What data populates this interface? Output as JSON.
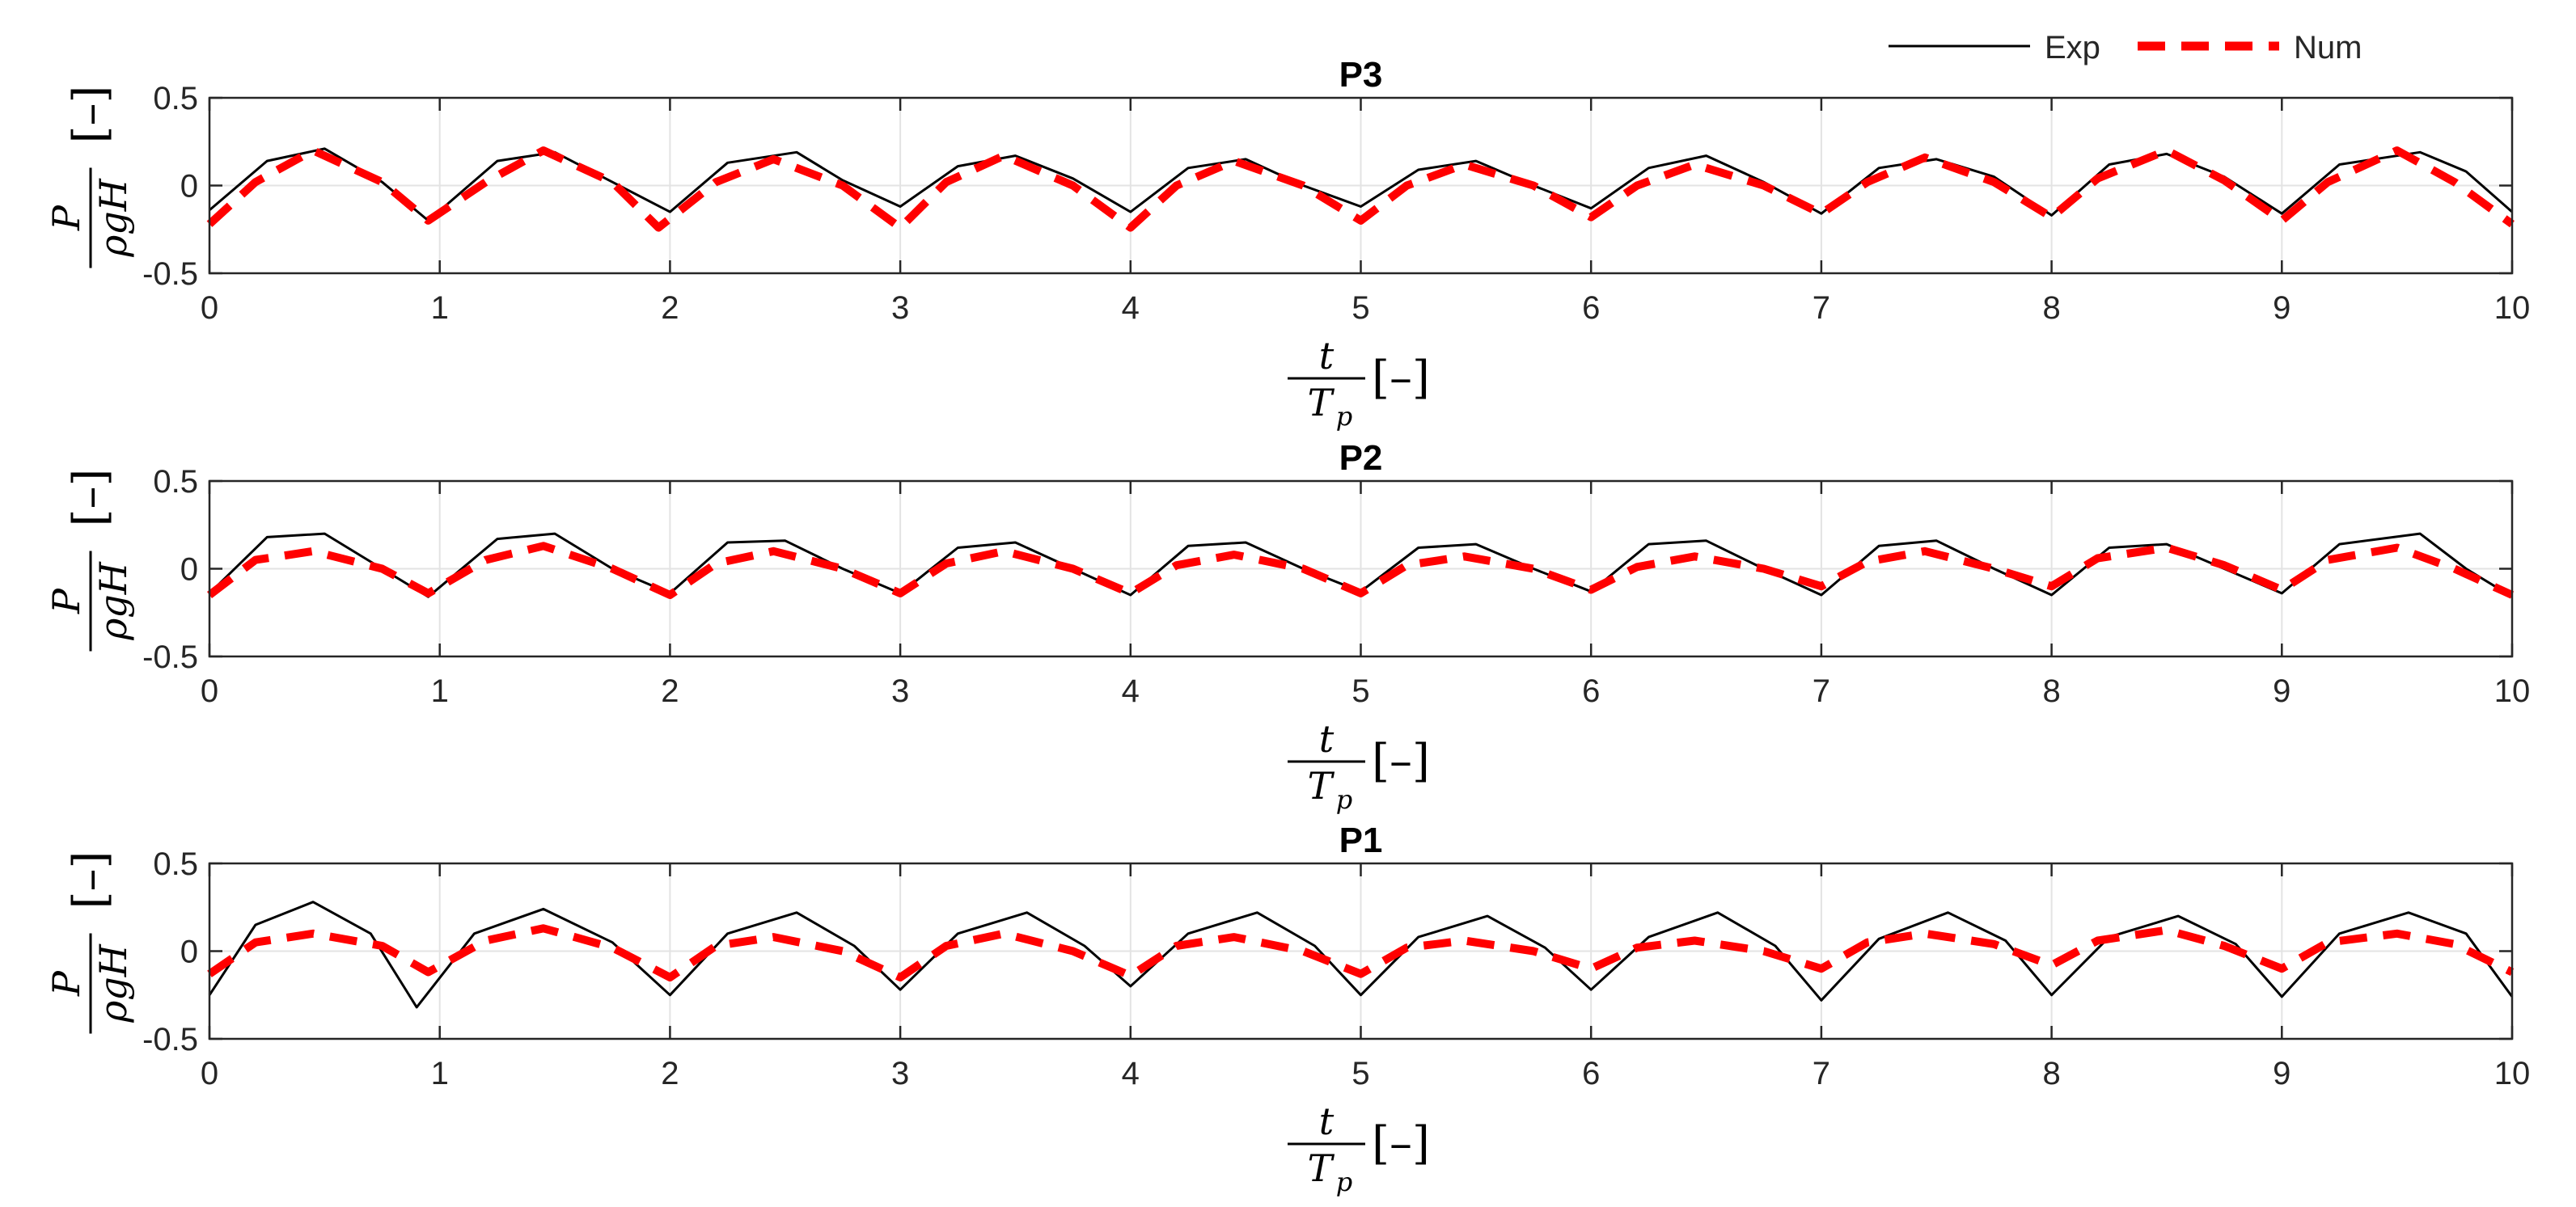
{
  "legend": {
    "placement": "top-right",
    "entries": [
      {
        "label": "Exp",
        "color": "#000000",
        "style": "solid"
      },
      {
        "label": "Num",
        "color": "#ff0000",
        "style": "dashed"
      }
    ]
  },
  "axis_text": {
    "x_var_num": "t",
    "x_var_den": "T",
    "x_var_den_sub": "p",
    "x_unit": "[–]",
    "y_var_num": "P",
    "y_var_den": "ρgH",
    "y_unit": "[–]"
  },
  "chart_data": [
    {
      "type": "line",
      "title": "P3",
      "xlim": [
        0,
        10
      ],
      "ylim": [
        -0.5,
        0.5
      ],
      "xticks": [
        "0",
        "1",
        "2",
        "3",
        "4",
        "5",
        "6",
        "7",
        "8",
        "9",
        "10"
      ],
      "yticks": [
        "0.5",
        "0",
        "-0.5"
      ],
      "grid": true,
      "series": [
        {
          "name": "Exp",
          "color": "#000000",
          "style": "solid",
          "x": [
            0,
            0.25,
            0.5,
            0.75,
            0.95,
            1.25,
            1.5,
            1.75,
            2.0,
            2.25,
            2.55,
            2.75,
            3.0,
            3.25,
            3.5,
            3.75,
            4.0,
            4.25,
            4.5,
            4.75,
            5.0,
            5.25,
            5.5,
            5.75,
            6.0,
            6.25,
            6.5,
            6.75,
            7.0,
            7.25,
            7.5,
            7.75,
            8.0,
            8.25,
            8.5,
            8.75,
            9.0,
            9.25,
            9.6,
            9.8,
            10.0
          ],
          "y": [
            -0.14,
            0.14,
            0.21,
            0.02,
            -0.2,
            0.14,
            0.19,
            0.02,
            -0.15,
            0.13,
            0.19,
            0.03,
            -0.12,
            0.11,
            0.17,
            0.04,
            -0.15,
            0.1,
            0.15,
            0.0,
            -0.12,
            0.09,
            0.14,
            0.0,
            -0.13,
            0.1,
            0.17,
            0.02,
            -0.16,
            0.1,
            0.15,
            0.05,
            -0.17,
            0.12,
            0.18,
            0.05,
            -0.16,
            0.12,
            0.19,
            0.08,
            -0.15
          ]
        },
        {
          "name": "Num",
          "color": "#ff0000",
          "style": "dashed",
          "x": [
            0,
            0.2,
            0.45,
            0.75,
            0.95,
            1.2,
            1.45,
            1.75,
            1.95,
            2.2,
            2.45,
            2.75,
            3.0,
            3.2,
            3.45,
            3.75,
            4.0,
            4.2,
            4.45,
            4.75,
            5.0,
            5.2,
            5.45,
            5.75,
            6.0,
            6.2,
            6.45,
            6.75,
            7.0,
            7.2,
            7.45,
            7.75,
            8.0,
            8.2,
            8.5,
            8.75,
            9.0,
            9.2,
            9.5,
            9.75,
            10.0
          ],
          "y": [
            -0.22,
            0.02,
            0.2,
            0.02,
            -0.2,
            0.02,
            0.2,
            0.02,
            -0.24,
            0.02,
            0.15,
            0.0,
            -0.24,
            0.02,
            0.17,
            0.0,
            -0.24,
            0.0,
            0.14,
            0.0,
            -0.2,
            0.0,
            0.12,
            0.0,
            -0.18,
            0.0,
            0.12,
            0.0,
            -0.16,
            0.02,
            0.16,
            0.02,
            -0.18,
            0.04,
            0.2,
            0.03,
            -0.2,
            0.02,
            0.2,
            0.02,
            -0.22
          ]
        }
      ]
    },
    {
      "type": "line",
      "title": "P2",
      "xlim": [
        0,
        10
      ],
      "ylim": [
        -0.5,
        0.5
      ],
      "xticks": [
        "0",
        "1",
        "2",
        "3",
        "4",
        "5",
        "6",
        "7",
        "8",
        "9",
        "10"
      ],
      "yticks": [
        "0.5",
        "0",
        "-0.5"
      ],
      "grid": true,
      "series": [
        {
          "name": "Exp",
          "color": "#000000",
          "style": "solid",
          "x": [
            0,
            0.25,
            0.5,
            0.75,
            0.95,
            1.25,
            1.5,
            1.75,
            2.0,
            2.25,
            2.5,
            2.75,
            3.0,
            3.25,
            3.5,
            3.75,
            4.0,
            4.25,
            4.5,
            4.75,
            5.0,
            5.25,
            5.5,
            5.75,
            6.0,
            6.25,
            6.5,
            6.75,
            7.0,
            7.25,
            7.5,
            7.75,
            8.0,
            8.25,
            8.5,
            8.75,
            9.0,
            9.25,
            9.6,
            9.8,
            10.0
          ],
          "y": [
            -0.14,
            0.18,
            0.2,
            0.0,
            -0.16,
            0.17,
            0.2,
            0.0,
            -0.14,
            0.15,
            0.16,
            0.0,
            -0.14,
            0.12,
            0.15,
            0.0,
            -0.15,
            0.13,
            0.15,
            0.0,
            -0.13,
            0.12,
            0.14,
            0.0,
            -0.13,
            0.14,
            0.16,
            0.0,
            -0.15,
            0.13,
            0.16,
            0.0,
            -0.15,
            0.12,
            0.14,
            0.0,
            -0.14,
            0.14,
            0.2,
            0.0,
            -0.16
          ]
        },
        {
          "name": "Num",
          "color": "#ff0000",
          "style": "dashed",
          "x": [
            0,
            0.2,
            0.45,
            0.75,
            0.95,
            1.2,
            1.45,
            1.75,
            2.0,
            2.2,
            2.45,
            2.75,
            3.0,
            3.2,
            3.45,
            3.75,
            4.0,
            4.2,
            4.45,
            4.75,
            5.0,
            5.2,
            5.45,
            5.75,
            6.0,
            6.2,
            6.45,
            6.75,
            7.0,
            7.2,
            7.45,
            7.75,
            8.0,
            8.2,
            8.5,
            8.75,
            9.0,
            9.2,
            9.5,
            9.75,
            10.0
          ],
          "y": [
            -0.15,
            0.05,
            0.1,
            0.0,
            -0.14,
            0.05,
            0.13,
            0.0,
            -0.15,
            0.03,
            0.1,
            0.0,
            -0.14,
            0.03,
            0.1,
            0.0,
            -0.14,
            0.02,
            0.08,
            0.0,
            -0.14,
            0.02,
            0.07,
            0.0,
            -0.12,
            0.01,
            0.07,
            0.0,
            -0.1,
            0.04,
            0.1,
            0.0,
            -0.1,
            0.06,
            0.12,
            0.02,
            -0.12,
            0.05,
            0.12,
            0.0,
            -0.15
          ]
        }
      ]
    },
    {
      "type": "line",
      "title": "P1",
      "xlim": [
        0,
        10
      ],
      "ylim": [
        -0.5,
        0.5
      ],
      "xticks": [
        "0",
        "1",
        "2",
        "3",
        "4",
        "5",
        "6",
        "7",
        "8",
        "9",
        "10"
      ],
      "yticks": [
        "0.5",
        "0",
        "-0.5"
      ],
      "grid": true,
      "series": [
        {
          "name": "Exp",
          "color": "#000000",
          "style": "solid",
          "x": [
            0,
            0.2,
            0.45,
            0.7,
            0.9,
            1.15,
            1.45,
            1.75,
            2.0,
            2.25,
            2.55,
            2.8,
            3.0,
            3.25,
            3.55,
            3.8,
            4.0,
            4.25,
            4.55,
            4.8,
            5.0,
            5.25,
            5.55,
            5.8,
            6.0,
            6.25,
            6.55,
            6.8,
            7.0,
            7.25,
            7.55,
            7.8,
            8.0,
            8.25,
            8.55,
            8.8,
            9.0,
            9.25,
            9.55,
            9.8,
            10.0
          ],
          "y": [
            -0.25,
            0.15,
            0.28,
            0.1,
            -0.32,
            0.1,
            0.24,
            0.05,
            -0.25,
            0.1,
            0.22,
            0.03,
            -0.22,
            0.1,
            0.22,
            0.03,
            -0.2,
            0.1,
            0.22,
            0.03,
            -0.25,
            0.08,
            0.2,
            0.02,
            -0.22,
            0.08,
            0.22,
            0.03,
            -0.28,
            0.07,
            0.22,
            0.06,
            -0.25,
            0.08,
            0.2,
            0.04,
            -0.26,
            0.1,
            0.22,
            0.1,
            -0.26
          ]
        },
        {
          "name": "Num",
          "color": "#ff0000",
          "style": "dashed",
          "x": [
            0,
            0.2,
            0.45,
            0.75,
            0.95,
            1.2,
            1.45,
            1.75,
            2.0,
            2.2,
            2.45,
            2.75,
            3.0,
            3.2,
            3.45,
            3.75,
            4.0,
            4.2,
            4.45,
            4.75,
            5.0,
            5.2,
            5.45,
            5.75,
            6.0,
            6.2,
            6.45,
            6.75,
            7.0,
            7.2,
            7.45,
            7.75,
            8.0,
            8.2,
            8.5,
            8.75,
            9.0,
            9.2,
            9.5,
            9.75,
            10.0
          ],
          "y": [
            -0.13,
            0.05,
            0.1,
            0.03,
            -0.12,
            0.06,
            0.13,
            0.02,
            -0.15,
            0.03,
            0.08,
            0.0,
            -0.15,
            0.03,
            0.1,
            0.0,
            -0.14,
            0.03,
            0.08,
            0.0,
            -0.13,
            0.02,
            0.06,
            0.0,
            -0.1,
            0.02,
            0.06,
            0.0,
            -0.1,
            0.05,
            0.1,
            0.04,
            -0.08,
            0.06,
            0.12,
            0.03,
            -0.1,
            0.05,
            0.1,
            0.04,
            -0.12
          ]
        }
      ]
    }
  ]
}
